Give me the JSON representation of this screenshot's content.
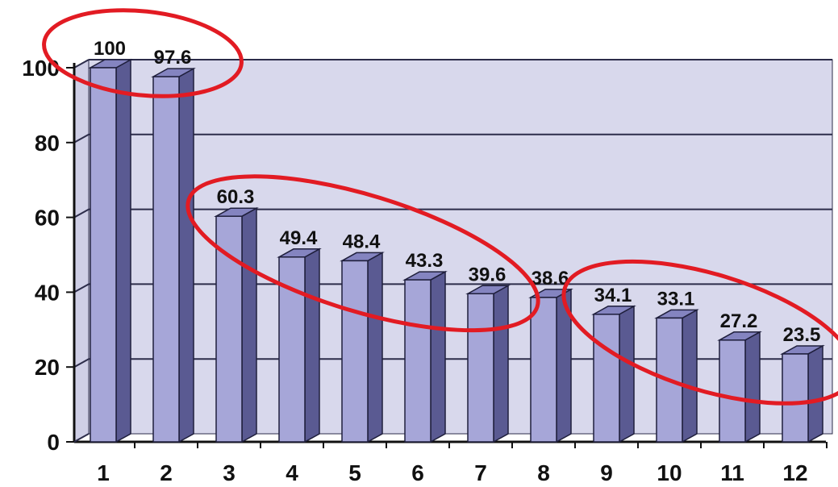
{
  "chart_data": {
    "type": "bar",
    "style": "3d-column",
    "categories": [
      "1",
      "2",
      "3",
      "4",
      "5",
      "6",
      "7",
      "8",
      "9",
      "10",
      "11",
      "12"
    ],
    "values": [
      100,
      97.6,
      60.3,
      49.4,
      48.4,
      43.3,
      39.6,
      38.6,
      34.1,
      33.1,
      27.2,
      23.5
    ],
    "data_labels": [
      "100",
      "97.6",
      "60.3",
      "49.4",
      "48.4",
      "43.3",
      "39.6",
      "38.6",
      "34.1",
      "33.1",
      "27.2",
      "23.5"
    ],
    "title": "",
    "xlabel": "",
    "ylabel": "",
    "ylim": [
      0,
      100
    ],
    "yticks": [
      "0",
      "20",
      "40",
      "60",
      "80",
      "100"
    ],
    "grid": true,
    "legend": "none",
    "highlight_groups": [
      {
        "name": "top",
        "categories": [
          "1",
          "2"
        ]
      },
      {
        "name": "middle",
        "categories": [
          "3",
          "4",
          "5",
          "6",
          "7"
        ]
      },
      {
        "name": "bottom",
        "categories": [
          "9",
          "10",
          "11",
          "12"
        ]
      }
    ],
    "colors": {
      "bar_front": "#a6a6d8",
      "bar_side": "#5a5a92",
      "bar_top": "#8484c0",
      "bar_edge": "#1f1f3c",
      "plot_back": "#d8d8ec",
      "grid": "#2c2c4a",
      "highlight_ellipse": "#e21b23"
    }
  }
}
